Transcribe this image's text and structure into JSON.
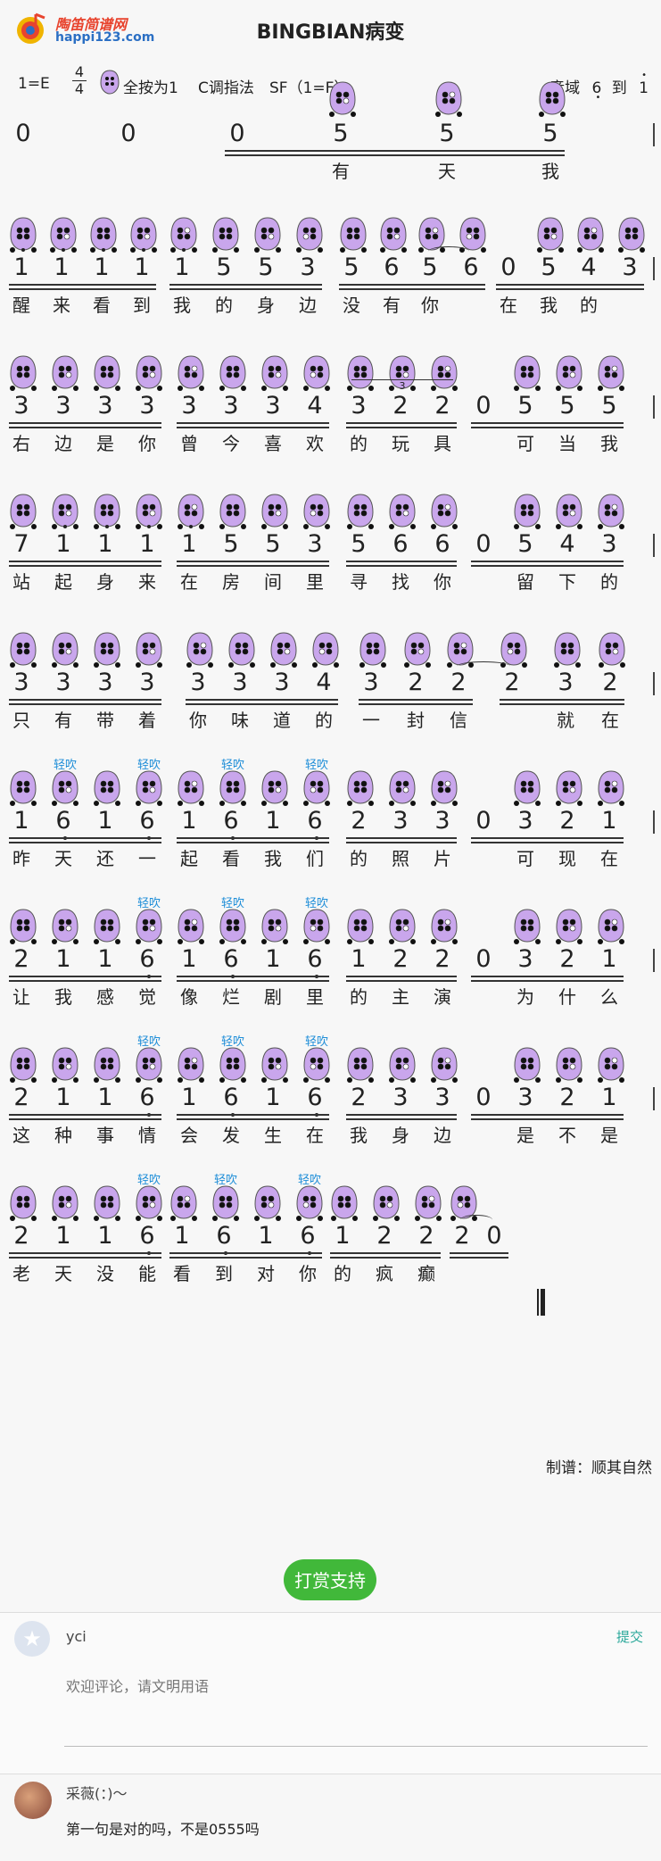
{
  "site": {
    "name_cn": "陶笛简谱网",
    "domain": "happi123.com"
  },
  "song": {
    "title": "BINGBIAN病变"
  },
  "meta": {
    "key": "1=E",
    "time_top": "4",
    "time_bottom": "4",
    "fingering": "全按为1",
    "method": "C调指法",
    "sf": "SF（1=F）",
    "range_label": "音域",
    "range_low": "6",
    "range_to": "到",
    "range_high": "1"
  },
  "qingchui": "轻吹",
  "rows": [
    {
      "notes": [
        "0",
        "0",
        "0",
        "5",
        "5",
        "5"
      ],
      "lyrics": [
        "有",
        "天",
        "我"
      ]
    },
    {
      "notes": [
        "1",
        "1",
        "1",
        "1",
        "1",
        "5",
        "5",
        "3",
        "5",
        "6",
        "5",
        "6",
        "0",
        "5",
        "4",
        "3"
      ],
      "lyrics": [
        "醒",
        "来",
        "看",
        "到",
        "我",
        "的",
        "身",
        "边",
        "没",
        "有",
        "你",
        "在",
        "我",
        "的"
      ]
    },
    {
      "notes": [
        "3",
        "3",
        "3",
        "3",
        "3",
        "3",
        "3",
        "4",
        "3",
        "2",
        "2",
        "0",
        "5",
        "5",
        "5"
      ],
      "lyrics": [
        "右",
        "边",
        "是",
        "你",
        "曾",
        "今",
        "喜",
        "欢",
        "的",
        "玩",
        "具",
        "可",
        "当",
        "我"
      ],
      "triplet": "3"
    },
    {
      "notes": [
        "7",
        "1",
        "1",
        "1",
        "1",
        "5",
        "5",
        "3",
        "5",
        "6",
        "6",
        "0",
        "5",
        "4",
        "3"
      ],
      "lyrics": [
        "站",
        "起",
        "身",
        "来",
        "在",
        "房",
        "间",
        "里",
        "寻",
        "找",
        "你",
        "留",
        "下",
        "的"
      ]
    },
    {
      "notes": [
        "3",
        "3",
        "3",
        "3",
        "3",
        "3",
        "3",
        "4",
        "3",
        "2",
        "2",
        "2",
        "3",
        "2"
      ],
      "lyrics": [
        "只",
        "有",
        "带",
        "着",
        "你",
        "味",
        "道",
        "的",
        "一",
        "封",
        "信",
        "就",
        "在"
      ]
    },
    {
      "notes": [
        "1",
        "6",
        "1",
        "6",
        "1",
        "6",
        "1",
        "6",
        "2",
        "3",
        "3",
        "0",
        "3",
        "2",
        "1"
      ],
      "lyrics": [
        "昨",
        "天",
        "还",
        "一",
        "起",
        "看",
        "我",
        "们",
        "的",
        "照",
        "片",
        "可",
        "现",
        "在"
      ]
    },
    {
      "notes": [
        "2",
        "1",
        "1",
        "6",
        "1",
        "6",
        "1",
        "6",
        "1",
        "2",
        "2",
        "0",
        "3",
        "2",
        "1"
      ],
      "lyrics": [
        "让",
        "我",
        "感",
        "觉",
        "像",
        "烂",
        "剧",
        "里",
        "的",
        "主",
        "演",
        "为",
        "什",
        "么"
      ]
    },
    {
      "notes": [
        "2",
        "1",
        "1",
        "6",
        "1",
        "6",
        "1",
        "6",
        "2",
        "3",
        "3",
        "0",
        "3",
        "2",
        "1"
      ],
      "lyrics": [
        "这",
        "种",
        "事",
        "情",
        "会",
        "发",
        "生",
        "在",
        "我",
        "身",
        "边",
        "是",
        "不",
        "是"
      ]
    },
    {
      "notes": [
        "2",
        "1",
        "1",
        "6",
        "1",
        "6",
        "1",
        "6",
        "1",
        "2",
        "2",
        "2",
        "0"
      ],
      "lyrics": [
        "老",
        "天",
        "没",
        "能",
        "看",
        "到",
        "对",
        "你",
        "的",
        "疯",
        "癫"
      ]
    }
  ],
  "credit": "制谱：顺其自然",
  "tip_button": "打赏支持",
  "comment_form": {
    "user": "yci",
    "submit": "提交",
    "placeholder": "欢迎评论，请文明用语"
  },
  "comments": [
    {
      "user": "采薇(：)～",
      "text": "第一句是对的吗，不是0555吗"
    }
  ],
  "colors": {
    "ocarina": "#c9a6ec",
    "accent_green": "#41b83a",
    "qingchui_blue": "#1f8ed8"
  }
}
